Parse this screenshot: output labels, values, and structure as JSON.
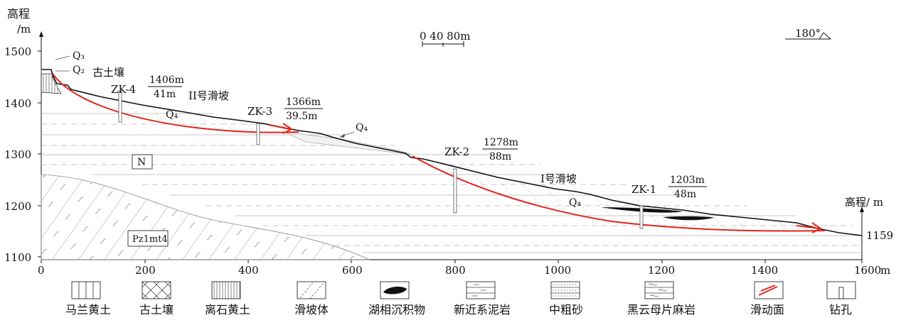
{
  "axes": {
    "y_title": "高程",
    "y_unit": "/m",
    "right_title": "高程/ m",
    "right_value": "1159",
    "x_unit": "m",
    "y_ticks": [
      "1500",
      "1400",
      "1300",
      "1200",
      "1100"
    ],
    "x_ticks": [
      "0",
      "200",
      "400",
      "600",
      "800",
      "1000",
      "1200",
      "1400",
      "1600"
    ]
  },
  "scale_bar": {
    "label": "0 40 80m"
  },
  "orientation": {
    "label": "180°"
  },
  "strata": {
    "q3": "Q₃",
    "q2": "Q₂",
    "paleosol": "古土壤",
    "q4_a": "Q₄",
    "q4_b": "Q₄",
    "q4_c": "Q₄",
    "n": "N",
    "pz": "Pz1mt4",
    "landslide_2": "II号滑坡",
    "landslide_1": "I号滑坡"
  },
  "boreholes": [
    {
      "name": "ZK-4",
      "elev": "1406m",
      "depth": "41m"
    },
    {
      "name": "ZK-3",
      "elev": "1366m",
      "depth": "39.5m"
    },
    {
      "name": "ZK-2",
      "elev": "1278m",
      "depth": "88m"
    },
    {
      "name": "ZK-1",
      "elev": "1203m",
      "depth": "48m"
    }
  ],
  "legend": [
    {
      "label": "马兰黄土",
      "icon": "malan-loess-icon"
    },
    {
      "label": "古土壤",
      "icon": "paleosol-icon"
    },
    {
      "label": "离石黄土",
      "icon": "lishi-loess-icon"
    },
    {
      "label": "滑坡体",
      "icon": "landslide-body-icon"
    },
    {
      "label": "湖相沉积物",
      "icon": "lacustrine-deposit-icon"
    },
    {
      "label": "新近系泥岩",
      "icon": "neogene-mudstone-icon"
    },
    {
      "label": "中粗砂",
      "icon": "coarse-sand-icon"
    },
    {
      "label": "黑云母片麻岩",
      "icon": "biotite-gneiss-icon"
    },
    {
      "label": "滑动面",
      "icon": "sliding-surface-icon"
    },
    {
      "label": "钻孔",
      "icon": "borehole-icon"
    }
  ],
  "colors": {
    "slip": "#e1251b",
    "line": "#111111",
    "thin": "#9a9a9a"
  }
}
